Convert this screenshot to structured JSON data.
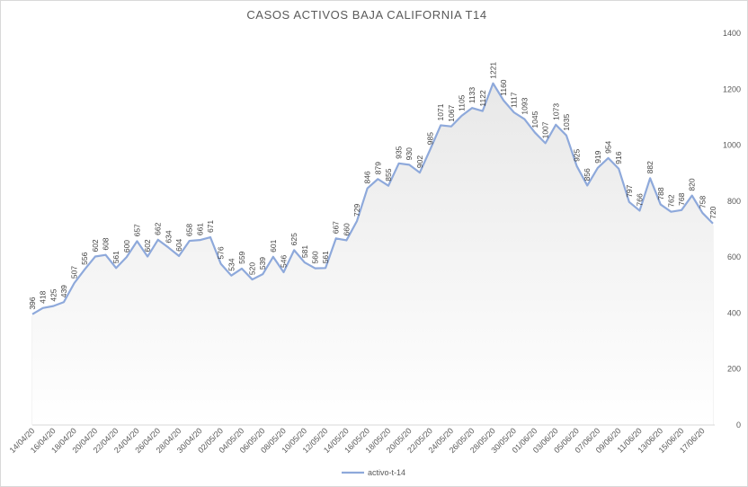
{
  "chart_data": {
    "type": "line",
    "title": "CASOS ACTIVOS BAJA CALIFORNIA T14",
    "xlabel": "",
    "ylabel": "",
    "y_position": "right",
    "ylim": [
      0,
      1400
    ],
    "y_ticks": [
      0,
      200,
      400,
      600,
      800,
      1000,
      1200,
      1400
    ],
    "x_tick_labels": [
      "14/04/20",
      "16/04/20",
      "18/04/20",
      "20/04/20",
      "22/04/20",
      "24/04/20",
      "26/04/20",
      "28/04/20",
      "30/04/20",
      "02/05/20",
      "04/05/20",
      "06/05/20",
      "08/05/20",
      "10/05/20",
      "12/05/20",
      "14/05/20",
      "16/05/20",
      "18/05/20",
      "20/05/20",
      "22/05/20",
      "24/05/20",
      "26/05/20",
      "28/05/20",
      "30/05/20",
      "01/06/20",
      "03/06/20",
      "05/06/20",
      "07/06/20",
      "09/06/20",
      "11/06/20",
      "13/06/20",
      "15/06/20",
      "17/06/20"
    ],
    "vertical_gridlines": true,
    "legend_position": "bottom-left",
    "line_color": "#8ea9db",
    "fill_gradient": [
      "#e8e8e8",
      "#ffffff"
    ],
    "series": [
      {
        "name": "activo-t-14",
        "values": [
          396,
          418,
          425,
          439,
          507,
          556,
          602,
          608,
          561,
          600,
          657,
          602,
          662,
          634,
          604,
          658,
          661,
          671,
          576,
          534,
          559,
          520,
          539,
          601,
          546,
          625,
          581,
          560,
          561,
          667,
          660,
          729,
          846,
          879,
          855,
          935,
          930,
          902,
          985,
          1071,
          1067,
          1105,
          1133,
          1122,
          1221,
          1160,
          1117,
          1093,
          1045,
          1007,
          1073,
          1035,
          925,
          856,
          919,
          954,
          916,
          797,
          766,
          882,
          788,
          762,
          768,
          820,
          758,
          720
        ]
      }
    ]
  }
}
